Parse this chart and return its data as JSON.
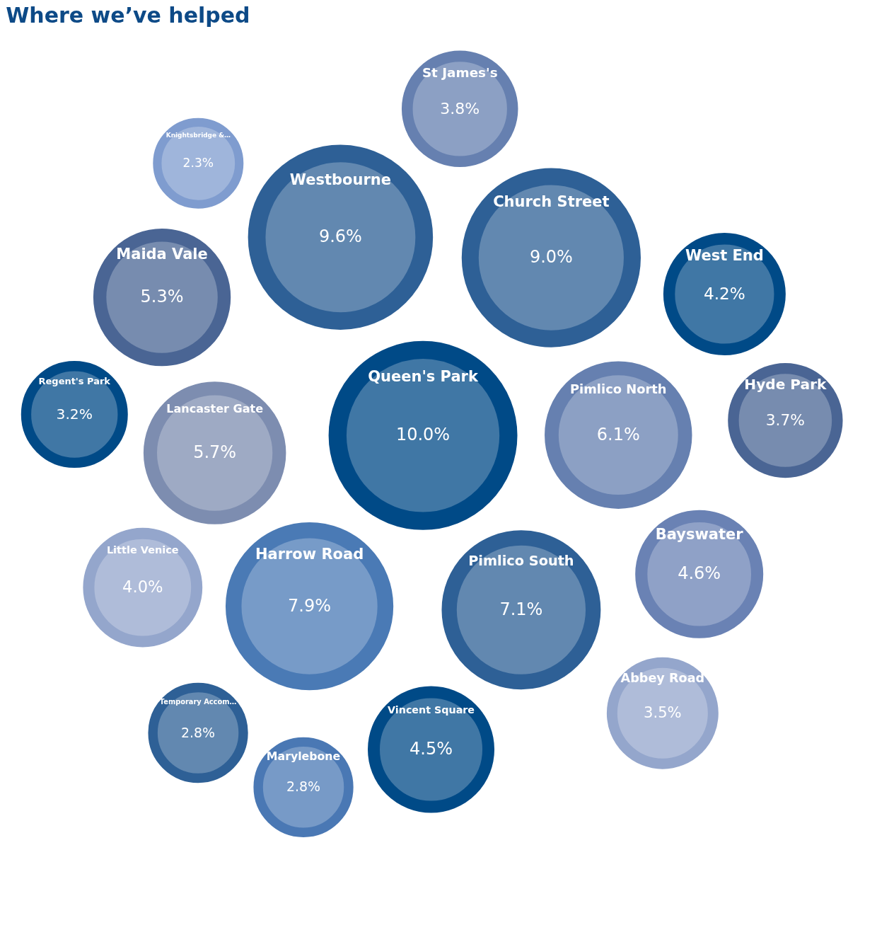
{
  "chart_data": {
    "type": "other",
    "title": "Where we’ve helped",
    "categories": [
      "Marylebone",
      "Hyde Park",
      "St James's",
      "Pimlico South",
      "Harrow Road",
      "Pimlico North",
      "Knightsbridge &…",
      "Temporary Accom…",
      "Bayswater",
      "Queen's Park",
      "Westbourne",
      "West End",
      "Vincent Square",
      "Little Venice",
      "Lancaster Gate",
      "Church Street",
      "Maida Vale",
      "Abbey Road",
      "Regent's Park"
    ],
    "values": [
      2.8,
      3.7,
      3.8,
      7.1,
      7.9,
      6.1,
      2.3,
      2.8,
      4.6,
      10.0,
      9.6,
      4.2,
      4.5,
      4.0,
      5.7,
      9.0,
      5.3,
      3.5,
      3.2
    ],
    "value_labels": [
      "2.8%",
      "3.7%",
      "3.8%",
      "7.1%",
      "7.9%",
      "6.1%",
      "2.3%",
      "2.8%",
      "4.6%",
      "10.0%",
      "9.6%",
      "4.2%",
      "4.5%",
      "4.0%",
      "5.7%",
      "9.0%",
      "5.3%",
      "3.5%",
      "3.2%"
    ],
    "colors": [
      "#4a78b4",
      "#4a6594",
      "#6680b0",
      "#2e6096",
      "#4a7ab5",
      "#6680b0",
      "#7f9ccf",
      "#2e6096",
      "#6a82b4",
      "#004a87",
      "#2e6096",
      "#004a87",
      "#004a87",
      "#94a6cc",
      "#7d8db0",
      "#2e6096",
      "#4a6594",
      "#94a6cc",
      "#004a87"
    ]
  }
}
